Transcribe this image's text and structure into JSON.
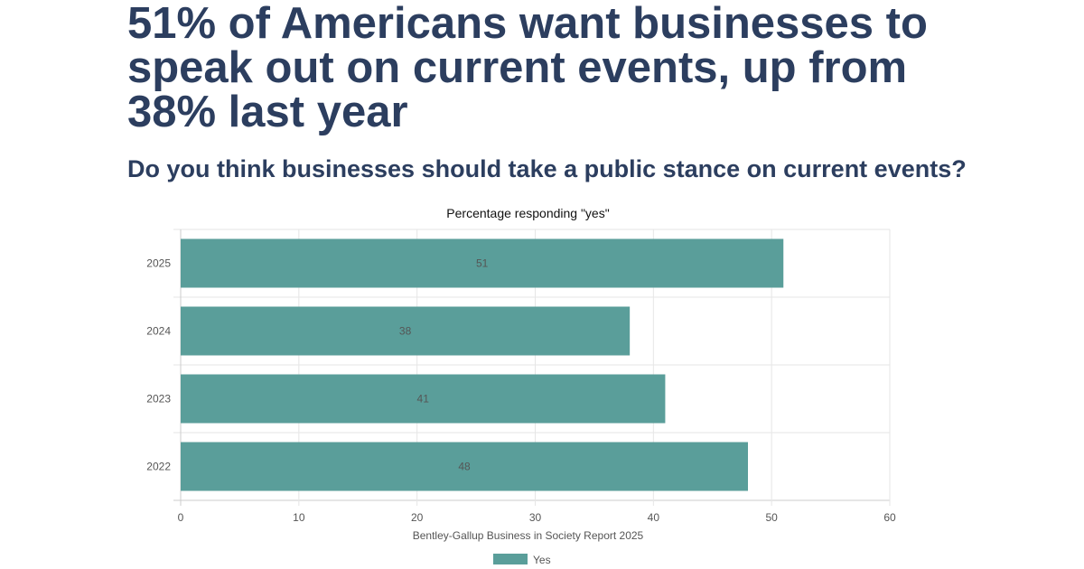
{
  "headline": "51% of Americans want businesses to speak out on current events, up from 38% last year",
  "question": "Do you think businesses should take a public stance on current events?",
  "chart_data": {
    "type": "bar",
    "orientation": "horizontal",
    "title": "Percentage responding \"yes\"",
    "categories": [
      "2025",
      "2024",
      "2023",
      "2022"
    ],
    "series": [
      {
        "name": "Yes",
        "values": [
          51,
          38,
          41,
          48
        ],
        "color": "#5a9e9a"
      }
    ],
    "xlabel": "Bentley-Gallup Business in Society Report 2025",
    "ylabel": "",
    "xlim": [
      0,
      60
    ],
    "xticks": [
      0,
      10,
      20,
      30,
      40,
      50,
      60
    ],
    "grid": true,
    "legend": "bottom"
  }
}
